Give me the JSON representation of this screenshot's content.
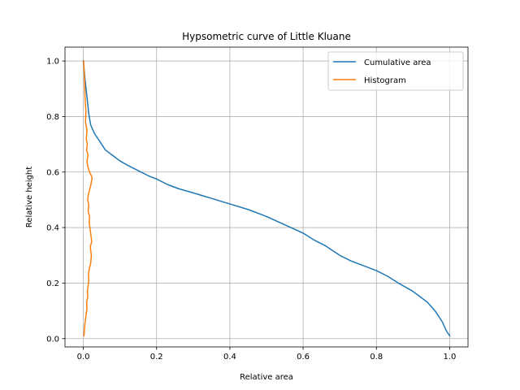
{
  "chart_data": {
    "type": "line",
    "title": "Hypsometric curve of Little Kluane",
    "xlabel": "Relative area",
    "ylabel": "Relative height",
    "xlim": [
      -0.05,
      1.05
    ],
    "ylim": [
      -0.03,
      1.05
    ],
    "xticks": [
      0.0,
      0.2,
      0.4,
      0.6,
      0.8,
      1.0
    ],
    "xtick_labels": [
      "0.0",
      "0.2",
      "0.4",
      "0.6",
      "0.8",
      "1.0"
    ],
    "yticks": [
      0.0,
      0.2,
      0.4,
      0.6,
      0.8,
      1.0
    ],
    "ytick_labels": [
      "0.0",
      "0.2",
      "0.4",
      "0.6",
      "0.8",
      "1.0"
    ],
    "grid": true,
    "legend_position": "top-right",
    "series": [
      {
        "name": "Cumulative area",
        "color": "#1f77b4",
        "x": [
          0.0,
          0.005,
          0.01,
          0.015,
          0.02,
          0.03,
          0.04,
          0.05,
          0.06,
          0.07,
          0.08,
          0.1,
          0.12,
          0.15,
          0.18,
          0.2,
          0.23,
          0.26,
          0.3,
          0.35,
          0.4,
          0.45,
          0.5,
          0.55,
          0.6,
          0.63,
          0.66,
          0.7,
          0.73,
          0.76,
          0.8,
          0.83,
          0.86,
          0.9,
          0.92,
          0.94,
          0.96,
          0.98,
          0.99,
          1.0
        ],
        "y": [
          1.0,
          0.93,
          0.87,
          0.81,
          0.77,
          0.74,
          0.72,
          0.7,
          0.68,
          0.67,
          0.66,
          0.64,
          0.625,
          0.605,
          0.585,
          0.575,
          0.555,
          0.54,
          0.525,
          0.505,
          0.485,
          0.465,
          0.44,
          0.41,
          0.38,
          0.355,
          0.335,
          0.3,
          0.28,
          0.265,
          0.245,
          0.225,
          0.2,
          0.17,
          0.15,
          0.13,
          0.1,
          0.06,
          0.03,
          0.01
        ]
      },
      {
        "name": "Histogram",
        "color": "#ff7f0e",
        "x": [
          0.002,
          0.003,
          0.004,
          0.006,
          0.008,
          0.01,
          0.009,
          0.012,
          0.011,
          0.013,
          0.015,
          0.014,
          0.016,
          0.018,
          0.02,
          0.022,
          0.019,
          0.023,
          0.021,
          0.018,
          0.016,
          0.017,
          0.013,
          0.015,
          0.012,
          0.014,
          0.02,
          0.024,
          0.017,
          0.012,
          0.01,
          0.013,
          0.009,
          0.011,
          0.008,
          0.01,
          0.006,
          0.007,
          0.005,
          0.004,
          0.003,
          0.002,
          0.001
        ],
        "y": [
          0.01,
          0.03,
          0.05,
          0.07,
          0.09,
          0.11,
          0.13,
          0.15,
          0.17,
          0.19,
          0.21,
          0.23,
          0.25,
          0.26,
          0.27,
          0.3,
          0.33,
          0.35,
          0.37,
          0.4,
          0.42,
          0.44,
          0.46,
          0.48,
          0.5,
          0.52,
          0.55,
          0.58,
          0.6,
          0.62,
          0.64,
          0.66,
          0.68,
          0.7,
          0.72,
          0.75,
          0.78,
          0.82,
          0.86,
          0.9,
          0.94,
          0.97,
          1.0
        ]
      }
    ]
  }
}
